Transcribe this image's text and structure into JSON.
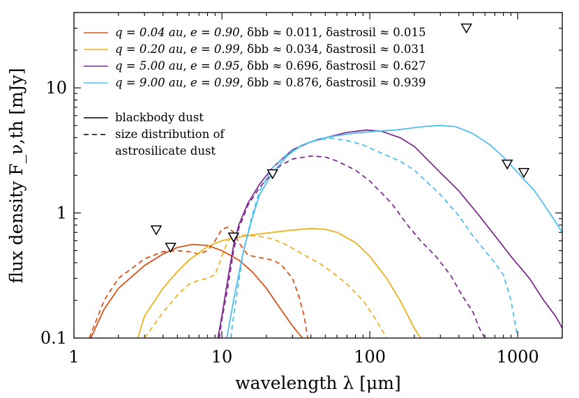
{
  "chart_data": {
    "type": "line",
    "xscale": "log",
    "yscale": "log",
    "xlim": [
      1,
      2000
    ],
    "ylim": [
      0.1,
      40
    ],
    "xlabel": "wavelength λ [μm]",
    "ylabel": "flux density F_ν,th [mJy]",
    "x_ticks": [
      {
        "value": 1,
        "label": "1"
      },
      {
        "value": 10,
        "label": "10"
      },
      {
        "value": 100,
        "label": "100"
      },
      {
        "value": 1000,
        "label": "1000"
      }
    ],
    "y_ticks": [
      {
        "value": 0.1,
        "label": "0.1"
      },
      {
        "value": 1,
        "label": "1"
      },
      {
        "value": 10,
        "label": "10"
      }
    ],
    "legend_position": "top-left",
    "series": [
      {
        "id": "q004",
        "label": "q = 0.04 au, e = 0.90, δbb ≈ 0.011, δastrosil ≈ 0.015",
        "color": "#d95319",
        "blackbody": [
          [
            1.3,
            0.1
          ],
          [
            1.6,
            0.17
          ],
          [
            2,
            0.25
          ],
          [
            3,
            0.38
          ],
          [
            4,
            0.47
          ],
          [
            5,
            0.53
          ],
          [
            6.3,
            0.56
          ],
          [
            8,
            0.55
          ],
          [
            10,
            0.5
          ],
          [
            13,
            0.42
          ],
          [
            16,
            0.34
          ],
          [
            20,
            0.25
          ],
          [
            25,
            0.17
          ],
          [
            30,
            0.125
          ],
          [
            35,
            0.1
          ]
        ],
        "astrosilicate": [
          [
            1.27,
            0.1
          ],
          [
            1.6,
            0.2
          ],
          [
            2,
            0.3
          ],
          [
            3,
            0.43
          ],
          [
            4,
            0.49
          ],
          [
            5,
            0.5
          ],
          [
            6,
            0.49
          ],
          [
            7,
            0.47
          ],
          [
            8,
            0.5
          ],
          [
            9,
            0.6
          ],
          [
            10,
            0.74
          ],
          [
            11,
            0.77
          ],
          [
            12,
            0.7
          ],
          [
            13,
            0.58
          ],
          [
            15,
            0.46
          ],
          [
            18,
            0.44
          ],
          [
            22,
            0.42
          ],
          [
            25,
            0.39
          ],
          [
            30,
            0.3
          ],
          [
            33,
            0.22
          ],
          [
            36,
            0.15
          ],
          [
            38,
            0.1
          ]
        ]
      },
      {
        "id": "q020",
        "label": "q = 0.20 au, e = 0.99, δbb ≈ 0.034, δastrosil ≈ 0.031",
        "color": "#edb120",
        "blackbody": [
          [
            2.7,
            0.1
          ],
          [
            3,
            0.15
          ],
          [
            4,
            0.25
          ],
          [
            5,
            0.34
          ],
          [
            6,
            0.42
          ],
          [
            7,
            0.48
          ],
          [
            8,
            0.54
          ],
          [
            10,
            0.6
          ],
          [
            12,
            0.63
          ],
          [
            15,
            0.66
          ],
          [
            20,
            0.69
          ],
          [
            30,
            0.73
          ],
          [
            40,
            0.75
          ],
          [
            50,
            0.74
          ],
          [
            60,
            0.7
          ],
          [
            80,
            0.58
          ],
          [
            100,
            0.45
          ],
          [
            130,
            0.3
          ],
          [
            160,
            0.2
          ],
          [
            200,
            0.12
          ],
          [
            220,
            0.1
          ]
        ],
        "astrosilicate": [
          [
            3,
            0.1
          ],
          [
            4,
            0.16
          ],
          [
            5,
            0.22
          ],
          [
            6,
            0.27
          ],
          [
            7,
            0.29
          ],
          [
            8,
            0.3
          ],
          [
            9,
            0.32
          ],
          [
            10,
            0.45
          ],
          [
            11,
            0.6
          ],
          [
            12,
            0.66
          ],
          [
            13,
            0.67
          ],
          [
            15,
            0.66
          ],
          [
            18,
            0.65
          ],
          [
            22,
            0.62
          ],
          [
            27,
            0.56
          ],
          [
            35,
            0.47
          ],
          [
            45,
            0.4
          ],
          [
            55,
            0.34
          ],
          [
            70,
            0.27
          ],
          [
            90,
            0.2
          ],
          [
            110,
            0.14
          ],
          [
            130,
            0.1
          ]
        ]
      },
      {
        "id": "q500",
        "label": "q = 5.00 au, e = 0.95, δbb ≈ 0.696, δastrosil ≈ 0.627",
        "color": "#7e2f8e",
        "blackbody": [
          [
            9.4,
            0.1
          ],
          [
            10,
            0.15
          ],
          [
            11,
            0.3
          ],
          [
            12,
            0.55
          ],
          [
            13,
            0.8
          ],
          [
            15,
            1.2
          ],
          [
            18,
            1.7
          ],
          [
            22,
            2.3
          ],
          [
            30,
            3.2
          ],
          [
            40,
            3.7
          ],
          [
            55,
            4.1
          ],
          [
            70,
            4.4
          ],
          [
            95,
            4.6
          ],
          [
            120,
            4.5
          ],
          [
            160,
            4
          ],
          [
            200,
            3.4
          ],
          [
            300,
            2.1
          ],
          [
            400,
            1.5
          ],
          [
            550,
            0.95
          ],
          [
            700,
            0.66
          ],
          [
            900,
            0.45
          ],
          [
            1200,
            0.3
          ],
          [
            1500,
            0.2
          ],
          [
            1800,
            0.15
          ],
          [
            2000,
            0.12
          ]
        ],
        "astrosilicate": [
          [
            9.6,
            0.1
          ],
          [
            10,
            0.14
          ],
          [
            11,
            0.26
          ],
          [
            12,
            0.5
          ],
          [
            13,
            0.75
          ],
          [
            15,
            1.15
          ],
          [
            18,
            1.6
          ],
          [
            22,
            2.1
          ],
          [
            25,
            2.4
          ],
          [
            30,
            2.7
          ],
          [
            40,
            2.85
          ],
          [
            50,
            2.8
          ],
          [
            60,
            2.6
          ],
          [
            80,
            2.2
          ],
          [
            100,
            1.8
          ],
          [
            140,
            1.2
          ],
          [
            180,
            0.8
          ],
          [
            220,
            0.6
          ],
          [
            280,
            0.45
          ],
          [
            350,
            0.32
          ],
          [
            420,
            0.22
          ],
          [
            500,
            0.16
          ],
          [
            550,
            0.12
          ],
          [
            600,
            0.1
          ]
        ]
      },
      {
        "id": "q900",
        "label": "q = 9.00 au, e = 0.99, δbb ≈ 0.876, δastrosil ≈ 0.939",
        "color": "#4dbeee",
        "blackbody": [
          [
            10.8,
            0.1
          ],
          [
            12,
            0.2
          ],
          [
            14,
            0.5
          ],
          [
            16,
            0.9
          ],
          [
            18,
            1.4
          ],
          [
            22,
            2.1
          ],
          [
            28,
            2.9
          ],
          [
            35,
            3.5
          ],
          [
            45,
            3.9
          ],
          [
            60,
            4.15
          ],
          [
            80,
            4.35
          ],
          [
            110,
            4.5
          ],
          [
            150,
            4.6
          ],
          [
            200,
            4.8
          ],
          [
            250,
            4.95
          ],
          [
            300,
            5
          ],
          [
            380,
            4.9
          ],
          [
            500,
            4.3
          ],
          [
            650,
            3.5
          ],
          [
            800,
            2.8
          ],
          [
            1000,
            2.1
          ],
          [
            1300,
            1.5
          ],
          [
            1600,
            1.05
          ],
          [
            2000,
            0.7
          ]
        ],
        "astrosilicate": [
          [
            11.5,
            0.1
          ],
          [
            12,
            0.15
          ],
          [
            14,
            0.5
          ],
          [
            16,
            0.95
          ],
          [
            18,
            1.5
          ],
          [
            22,
            2.3
          ],
          [
            28,
            3
          ],
          [
            35,
            3.5
          ],
          [
            45,
            3.85
          ],
          [
            55,
            3.95
          ],
          [
            70,
            3.8
          ],
          [
            90,
            3.5
          ],
          [
            120,
            3
          ],
          [
            160,
            2.6
          ],
          [
            200,
            2.2
          ],
          [
            300,
            1.4
          ],
          [
            400,
            0.95
          ],
          [
            500,
            0.65
          ],
          [
            600,
            0.5
          ],
          [
            700,
            0.4
          ],
          [
            800,
            0.32
          ],
          [
            900,
            0.2
          ],
          [
            1000,
            0.1
          ]
        ]
      }
    ],
    "observations": [
      {
        "x": 3.6,
        "y": 0.73
      },
      {
        "x": 4.5,
        "y": 0.53
      },
      {
        "x": 12,
        "y": 0.64
      },
      {
        "x": 22,
        "y": 2.05
      },
      {
        "x": 450,
        "y": 30
      },
      {
        "x": 850,
        "y": 2.45
      },
      {
        "x": 1100,
        "y": 2.1
      }
    ]
  },
  "legend": {
    "series_entries": [
      {
        "q": "q = 0.04 au",
        "e": "e = 0.90",
        "d_bb": "δbb ≈ 0.011",
        "d_as": "δastrosil ≈ 0.015"
      },
      {
        "q": "q = 0.20 au",
        "e": "e = 0.99",
        "d_bb": "δbb ≈ 0.034",
        "d_as": "δastrosil ≈ 0.031"
      },
      {
        "q": "q = 5.00 au",
        "e": "e = 0.95",
        "d_bb": "δbb ≈ 0.696",
        "d_as": "δastrosil ≈ 0.627"
      },
      {
        "q": "q = 9.00 au",
        "e": "e = 0.99",
        "d_bb": "δbb ≈ 0.876",
        "d_as": "δastrosil ≈ 0.939"
      }
    ],
    "style_entries": {
      "solid": "blackbody dust",
      "dashed_line1": "size distribution of",
      "dashed_line2": "astrosilicate dust"
    }
  }
}
